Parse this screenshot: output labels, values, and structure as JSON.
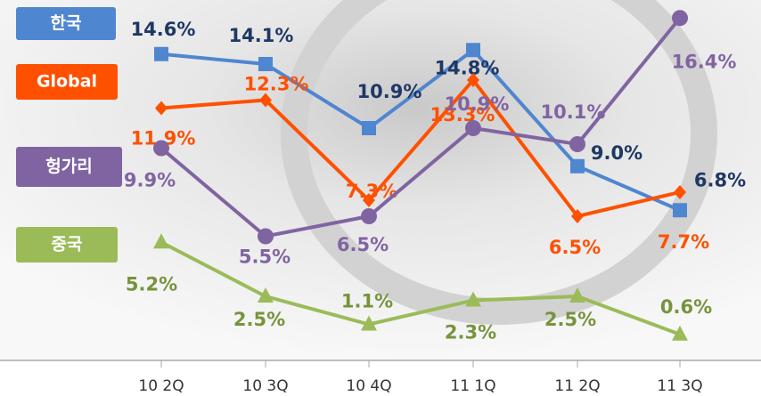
{
  "chart_data": {
    "type": "line",
    "categories": [
      "10 2Q",
      "10 3Q",
      "10 4Q",
      "11 1Q",
      "11 2Q",
      "11 3Q"
    ],
    "ylim": [
      -0.7,
      17.3
    ],
    "series": [
      {
        "name": "한국",
        "color": "#4f86d0",
        "label_color": "#1f3864",
        "marker": "square",
        "values": [
          14.6,
          14.1,
          10.9,
          14.8,
          9.0,
          6.8
        ],
        "value_labels": [
          "14.6%",
          "14.1%",
          "10.9%",
          "14.8%",
          "9.0%",
          "6.8%"
        ]
      },
      {
        "name": "Global",
        "color": "#ff5000",
        "label_color": "#ff5000",
        "marker": "diamond",
        "values": [
          11.9,
          12.3,
          7.3,
          13.3,
          6.5,
          7.7
        ],
        "value_labels": [
          "11.9%",
          "12.3%",
          "7.3%",
          "13.3%",
          "6.5%",
          "7.7%"
        ]
      },
      {
        "name": "헝가리",
        "color": "#8064a2",
        "label_color": "#8064a2",
        "marker": "circle",
        "values": [
          9.9,
          5.5,
          6.5,
          10.9,
          10.1,
          16.4
        ],
        "value_labels": [
          "9.9%",
          "5.5%",
          "6.5%",
          "10.9%",
          "10.1%",
          "16.4%"
        ]
      },
      {
        "name": "중국",
        "color": "#9bbb59",
        "label_color": "#77933c",
        "marker": "triangle",
        "values": [
          5.2,
          2.5,
          1.1,
          2.3,
          2.5,
          0.6
        ],
        "value_labels": [
          "5.2%",
          "2.5%",
          "1.1%",
          "2.3%",
          "2.5%",
          "0.6%"
        ]
      }
    ]
  }
}
